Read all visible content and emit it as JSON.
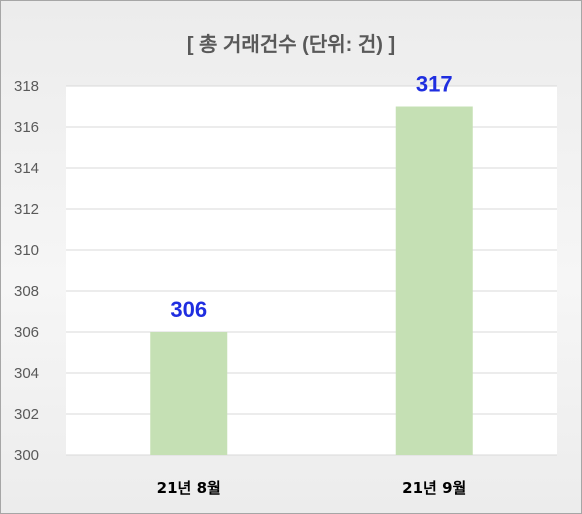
{
  "chart_data": {
    "type": "bar",
    "title": "[ 총 거래건수 (단위: 건) ]",
    "categories": [
      "21년 8월",
      "21년 9월"
    ],
    "values": [
      306,
      317
    ],
    "data_labels": [
      "306",
      "317"
    ],
    "xlabel": "",
    "ylabel": "",
    "ylim": [
      300,
      318
    ],
    "yticks": [
      300,
      302,
      304,
      306,
      308,
      310,
      312,
      314,
      316,
      318
    ],
    "grid": true,
    "legend": "none",
    "colors": {
      "bar": "#c5e0b4",
      "data_label": "#1f2ee0",
      "grid": "#d9d9d9"
    }
  }
}
